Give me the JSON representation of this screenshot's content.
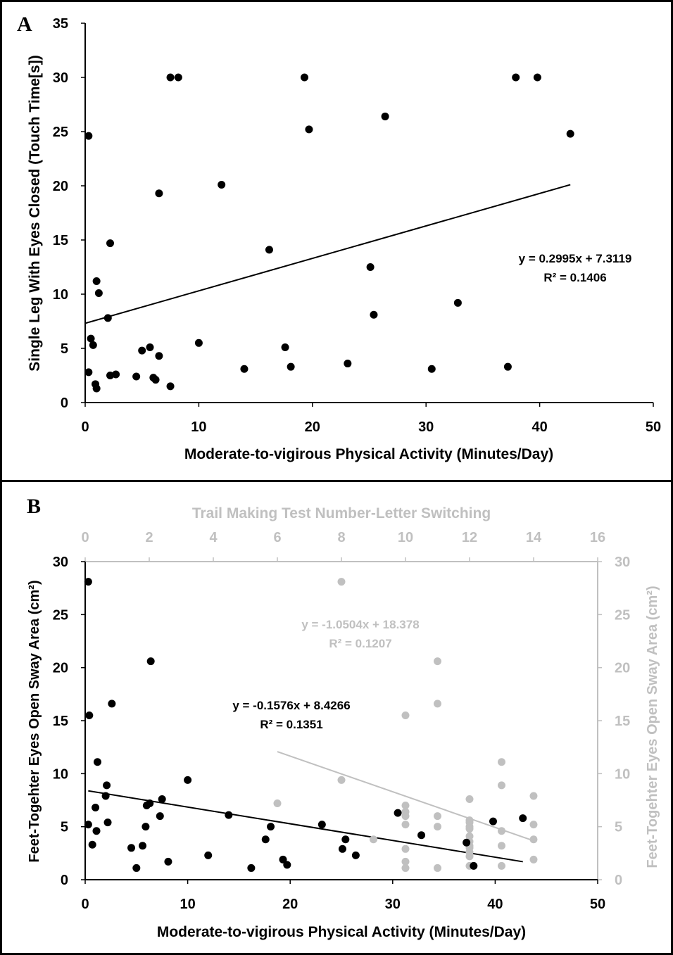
{
  "chart_data": [
    {
      "type": "scatter",
      "panel_letter": "A",
      "xlabel": "Moderate-to-vigirous Physical Activity (Minutes/Day)",
      "ylabel": "Single Leg With Eyes Closed (Touch Time[s])",
      "xlim": [
        0,
        50
      ],
      "ylim": [
        0,
        35
      ],
      "xticks": [
        "0",
        "10",
        "20",
        "30",
        "40",
        "50"
      ],
      "yticks": [
        "0",
        "5",
        "10",
        "15",
        "20",
        "25",
        "30",
        "35"
      ],
      "colors": {
        "points": "#000000",
        "trendline": "#000000"
      },
      "series": [
        {
          "x": [
            0.3,
            0.5,
            0.7,
            1.0,
            1.2,
            2.0,
            2.2,
            0.9,
            1.0,
            2.2,
            2.7,
            0.3,
            4.5,
            5.0,
            5.7,
            6.0,
            6.2,
            6.5,
            7.5,
            6.5,
            7.5,
            8.2,
            10.0,
            12.0,
            14.0,
            16.2,
            17.6,
            18.1,
            19.3,
            19.7,
            23.1,
            25.1,
            25.4,
            26.4,
            30.5,
            32.8,
            37.2,
            37.9,
            39.8,
            42.7
          ],
          "y": [
            24.6,
            5.9,
            5.3,
            11.2,
            10.1,
            7.8,
            14.7,
            1.7,
            1.3,
            2.5,
            2.6,
            2.8,
            2.4,
            4.8,
            5.1,
            2.3,
            2.1,
            4.3,
            1.5,
            19.3,
            30.0,
            30.0,
            5.5,
            20.1,
            3.1,
            14.1,
            5.1,
            3.3,
            30.0,
            25.2,
            3.6,
            12.5,
            8.1,
            26.4,
            3.1,
            9.2,
            3.3,
            30.0,
            30.0,
            24.8
          ]
        }
      ],
      "trendline": {
        "slope": 0.2995,
        "intercept": 7.3119,
        "x_range": [
          0,
          42.7
        ]
      },
      "annotation": {
        "equation": "y = 0.2995x + 7.3119",
        "r2": "R² = 0.1406"
      }
    },
    {
      "type": "scatter",
      "panel_letter": "B",
      "xlabel": "Moderate-to-vigirous Physical Activity (Minutes/Day)",
      "ylabel": "Feet-Togehter Eyes Open Sway Area (cm²)",
      "xlabel_top": "Trail Making Test Number-Letter Switching",
      "ylabel_right": "Feet-Togehter Eyes Open Sway Area (cm²)",
      "xlim": [
        0,
        50
      ],
      "ylim": [
        0,
        30
      ],
      "xlim_top": [
        0,
        16
      ],
      "xticks": [
        "0",
        "10",
        "20",
        "30",
        "40",
        "50"
      ],
      "xticks_top": [
        "0",
        "2",
        "4",
        "6",
        "8",
        "10",
        "12",
        "14",
        "16"
      ],
      "yticks": [
        "0",
        "5",
        "10",
        "15",
        "20",
        "25",
        "30"
      ],
      "colors": {
        "black_series": "#000000",
        "gray_series": "#c0c0c0"
      },
      "series": [
        {
          "axis": "bottom",
          "x": [
            0.3,
            0.4,
            0.7,
            1.0,
            1.1,
            1.2,
            2.0,
            2.1,
            2.2,
            2.6,
            0.3,
            4.5,
            5.0,
            5.6,
            5.9,
            6.0,
            6.3,
            6.4,
            7.3,
            7.5,
            8.1,
            10.0,
            12.0,
            14.0,
            16.2,
            17.6,
            18.1,
            19.3,
            19.7,
            23.1,
            25.1,
            25.4,
            26.4,
            30.5,
            32.8,
            37.2,
            37.9,
            39.8,
            42.7
          ],
          "y": [
            28.1,
            15.5,
            3.3,
            6.8,
            4.6,
            11.1,
            7.9,
            8.9,
            5.4,
            16.6,
            5.2,
            3.0,
            1.1,
            3.2,
            5.0,
            7.0,
            7.2,
            20.6,
            6.0,
            7.6,
            1.7,
            9.4,
            2.3,
            6.1,
            1.1,
            3.8,
            5.0,
            1.9,
            1.4,
            5.2,
            2.9,
            3.8,
            2.3,
            6.3,
            4.2,
            3.5,
            1.3,
            5.5,
            5.8
          ]
        },
        {
          "axis": "top",
          "x": [
            8,
            8,
            6,
            9,
            10,
            10,
            10,
            10,
            10,
            10,
            10,
            10,
            11,
            11,
            11,
            11,
            11,
            12,
            12,
            12,
            12,
            12,
            12,
            12,
            12,
            12,
            12,
            12,
            12,
            13,
            13,
            13,
            13,
            13,
            14,
            14,
            14,
            14
          ],
          "y": [
            28.1,
            9.4,
            7.2,
            3.8,
            15.5,
            7.0,
            6.4,
            6.0,
            5.2,
            2.9,
            1.7,
            1.1,
            20.6,
            16.6,
            6.0,
            5.0,
            1.1,
            7.6,
            5.6,
            5.4,
            5.0,
            4.8,
            4.1,
            3.6,
            3.2,
            3.0,
            2.6,
            2.2,
            1.3,
            11.1,
            8.9,
            4.6,
            3.2,
            1.3,
            7.9,
            5.2,
            3.8,
            1.9
          ]
        }
      ],
      "trendlines": [
        {
          "series": "black",
          "slope": -0.1576,
          "intercept": 8.4266,
          "x_range": [
            0.3,
            42.7
          ]
        },
        {
          "series": "gray",
          "slope": -1.0504,
          "intercept": 18.378,
          "x_range": [
            6,
            14
          ]
        }
      ],
      "annotations": [
        {
          "equation": "y = -0.1576x + 8.4266",
          "r2": "R² = 0.1351"
        },
        {
          "equation": "y = -1.0504x + 18.378",
          "r2": "R² = 0.1207"
        }
      ]
    }
  ]
}
